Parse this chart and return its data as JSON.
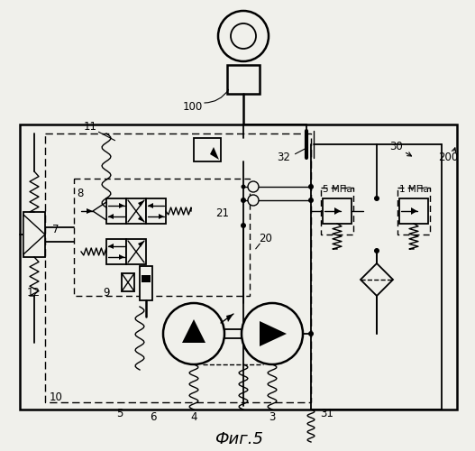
{
  "bg": "#f5f5f0",
  "title": "Фиг.5",
  "figsize": [
    5.27,
    5.0
  ],
  "dpi": 100
}
